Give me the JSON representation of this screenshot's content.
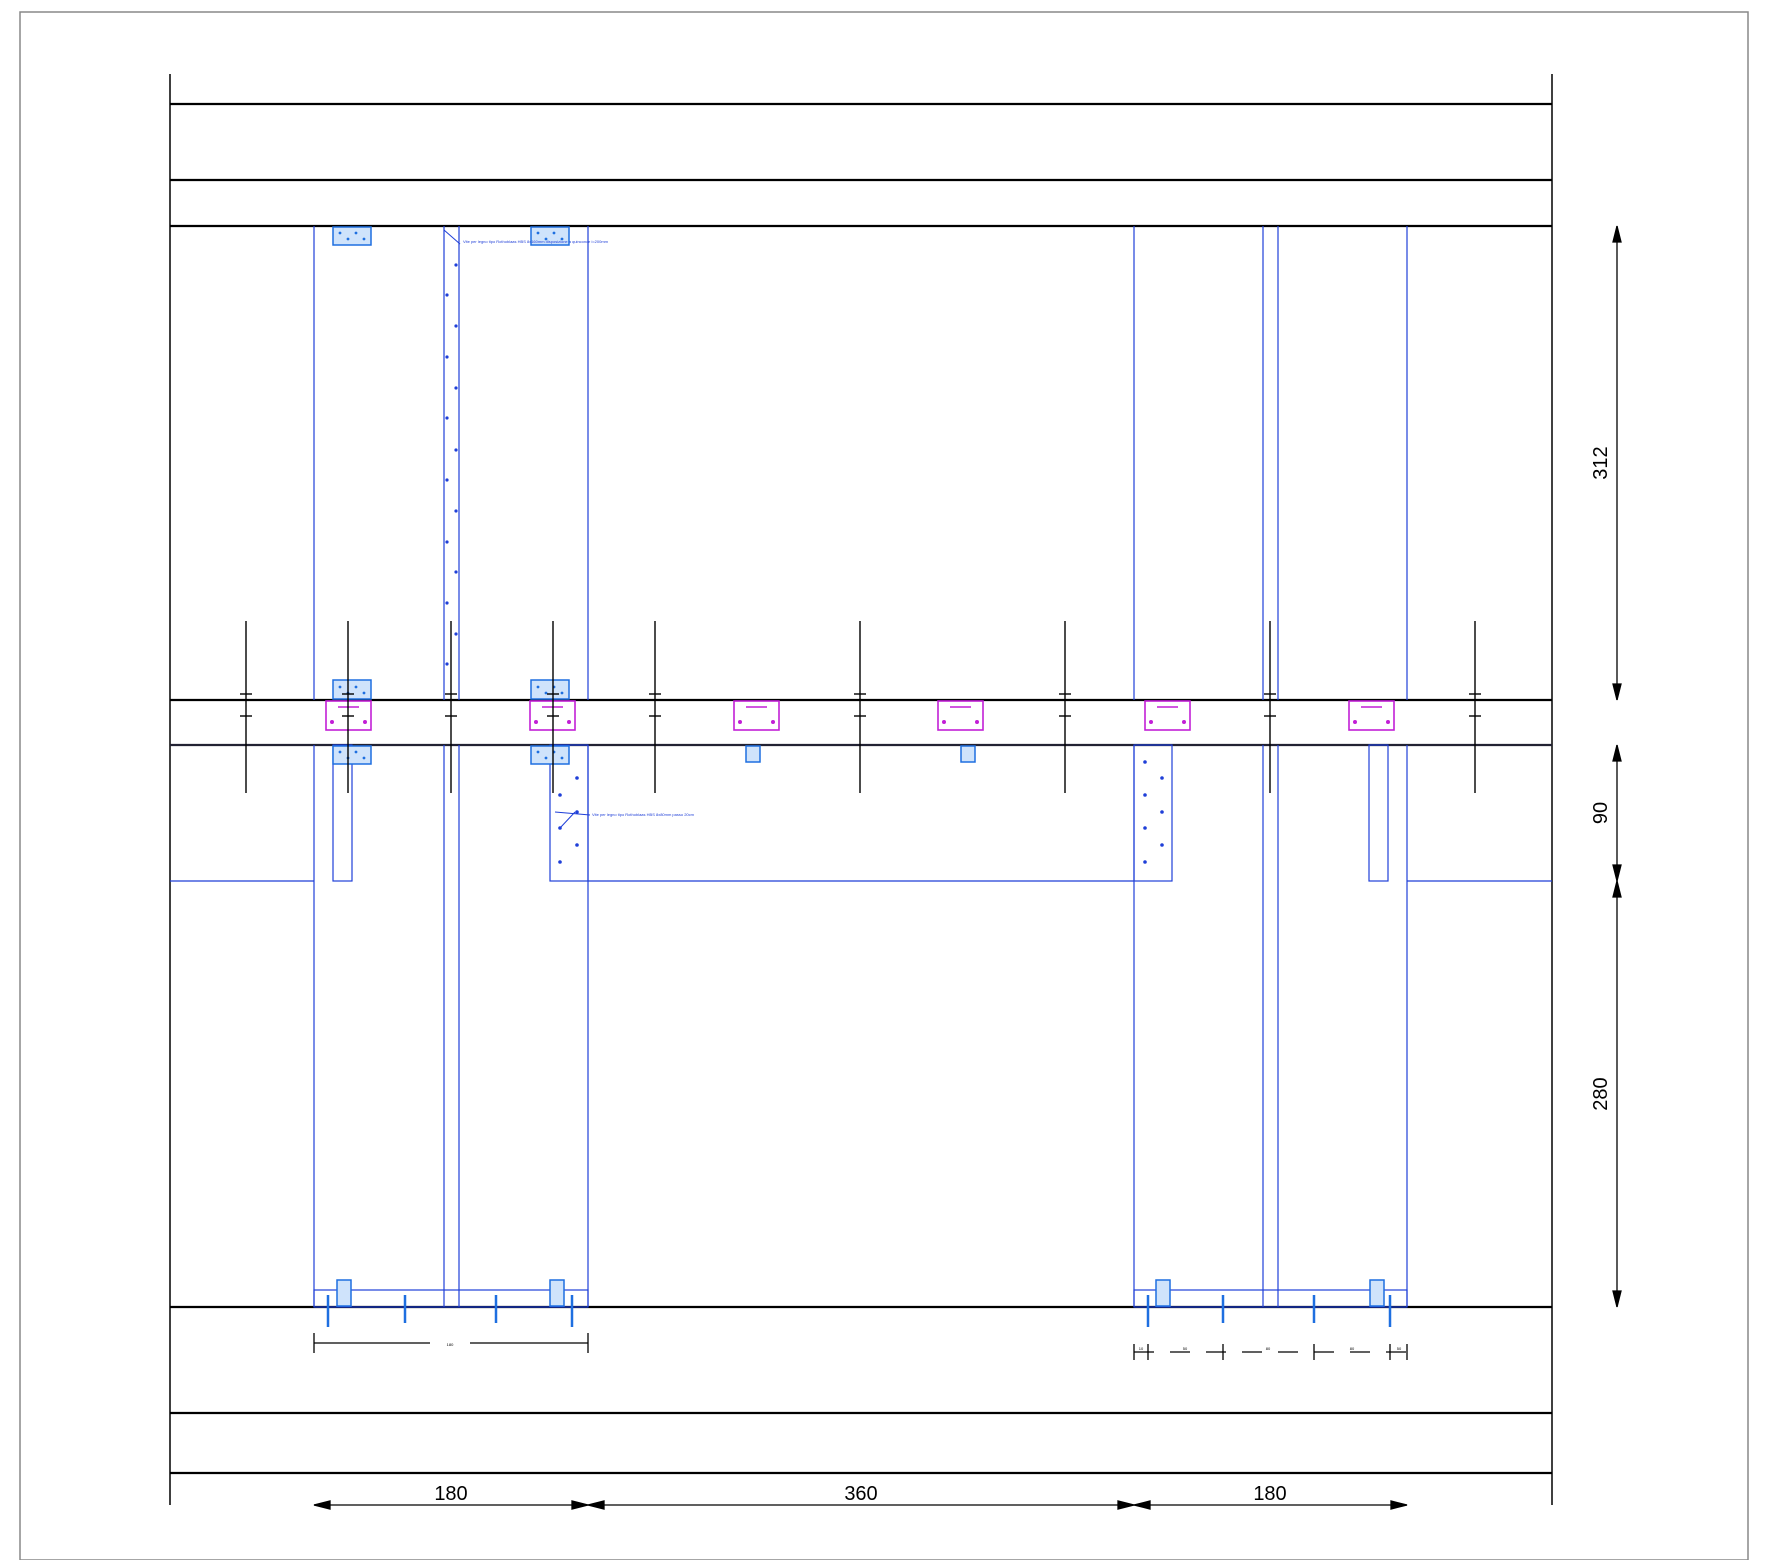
{
  "drawing": {
    "dimensions_horizontal": [
      "180",
      "360",
      "180"
    ],
    "dimensions_vertical": [
      "312",
      "90",
      "280"
    ],
    "base_dim_left": "180",
    "base_dim_right": [
      "10",
      "50",
      "80",
      "80",
      "50",
      "10"
    ],
    "note_top": "Vite per legno tipo Rothoblaas HBS 8x160mm disposizione a quinconce i=200mm",
    "note_mid": "Vite per legno tipo Rothoblaas HBS 8x80mm passo 20cm",
    "colors": {
      "structure": "#000000",
      "timber": "#1f3fd8",
      "bracket": "#c21fd6",
      "plate": "#1e6fe0"
    }
  }
}
